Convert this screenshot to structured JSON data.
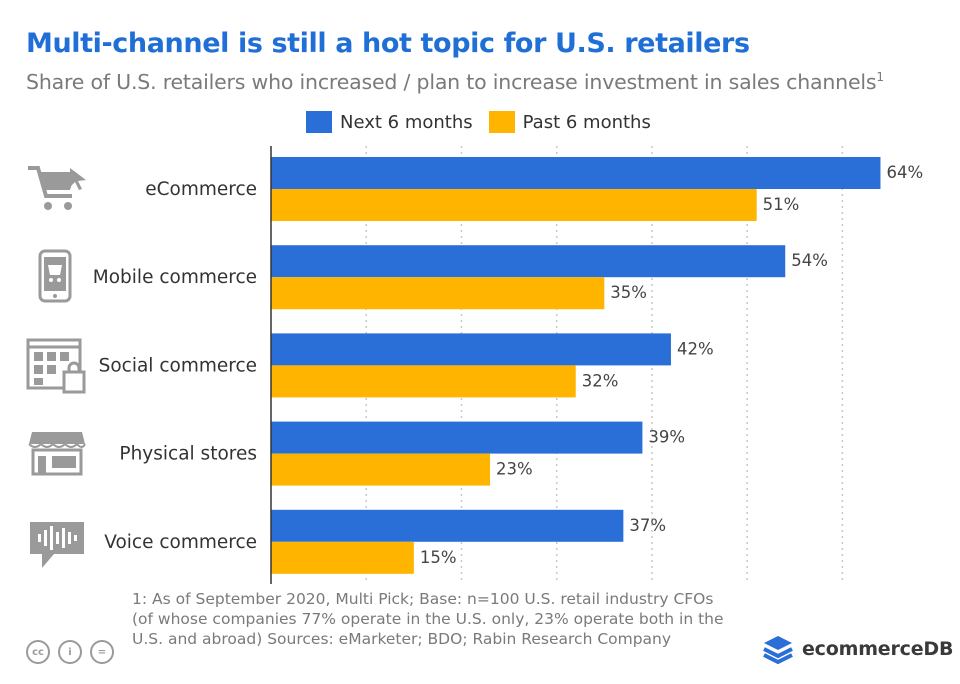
{
  "header": {
    "title": "Multi-channel is still a hot topic for U.S. retailers",
    "subtitle": "Share of U.S. retailers who increased / plan to increase investment in sales channels",
    "subtitle_sup": "1"
  },
  "colors": {
    "next": "#2a6fd8",
    "past": "#ffb400",
    "title": "#1f6fd6",
    "grid": "#c8c8c8"
  },
  "icons": [
    "shopping-cart-icon",
    "mobile-phone-icon",
    "social-grid-icon",
    "storefront-icon",
    "voice-bubble-icon"
  ],
  "chart_data": {
    "type": "bar",
    "orientation": "horizontal",
    "categories": [
      "eCommerce",
      "Mobile commerce",
      "Social commerce",
      "Physical stores",
      "Voice commerce"
    ],
    "series": [
      {
        "name": "Next 6 months",
        "values": [
          64,
          54,
          42,
          39,
          37
        ],
        "labels": [
          "64%",
          "54%",
          "42%",
          "39%",
          "37%"
        ]
      },
      {
        "name": "Past 6 months",
        "values": [
          51,
          35,
          32,
          23,
          15
        ],
        "labels": [
          "51%",
          "35%",
          "32%",
          "23%",
          "15%"
        ]
      }
    ],
    "xlim": [
      0,
      65
    ],
    "grid": true,
    "legend": "top-center"
  },
  "footnote": "1: As of September 2020, Multi Pick; Base: n=100 U.S. retail industry CFOs (of whose companies 77% operate in the U.S. only, 23% operate both in the U.S. and abroad) Sources: eMarketer; BDO; Rabin Research Company",
  "license": {
    "cc": "cc",
    "by": "i",
    "nd": "="
  },
  "brand": {
    "name": "ecommerceDB"
  }
}
